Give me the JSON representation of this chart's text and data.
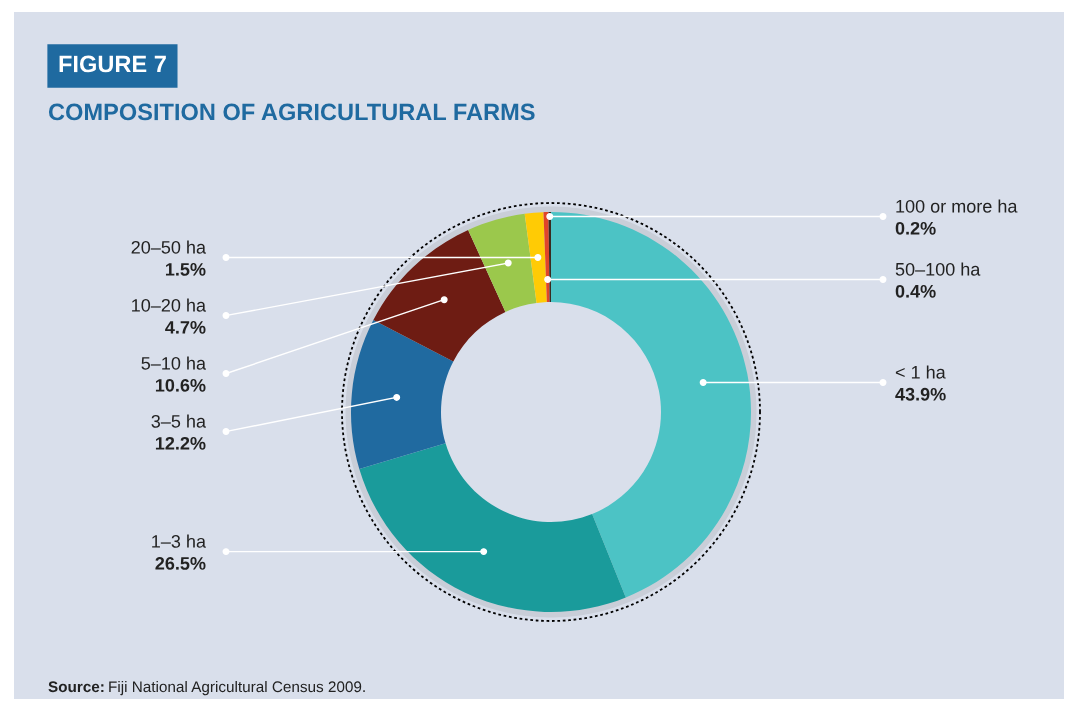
{
  "chart_data": {
    "type": "donut",
    "title": "COMPOSITION OF AGRICULTURAL FARMS",
    "annotations": [
      "FIGURE 7",
      "Source: Fiji National Agricultural Census 2009."
    ],
    "categories": [
      "< 1 ha",
      "1–3 ha",
      "3–5 ha",
      "5–10 ha",
      "10–20 ha",
      "20–50 ha",
      "50–100 ha",
      "100 or more ha"
    ],
    "values": [
      43.9,
      26.5,
      12.2,
      10.6,
      4.7,
      1.5,
      0.4,
      0.2
    ],
    "value_labels": [
      "43.9%",
      "26.5%",
      "12.2%",
      "10.6%",
      "4.7%",
      "1.5%",
      "0.4%",
      "0.2%"
    ],
    "colors": [
      "#4cc3c5",
      "#1a9b9b",
      "#206aa0",
      "#6e1c13",
      "#9bc84c",
      "#ffcb05",
      "#e0452a",
      "#3a2a20"
    ],
    "legend": false
  }
}
